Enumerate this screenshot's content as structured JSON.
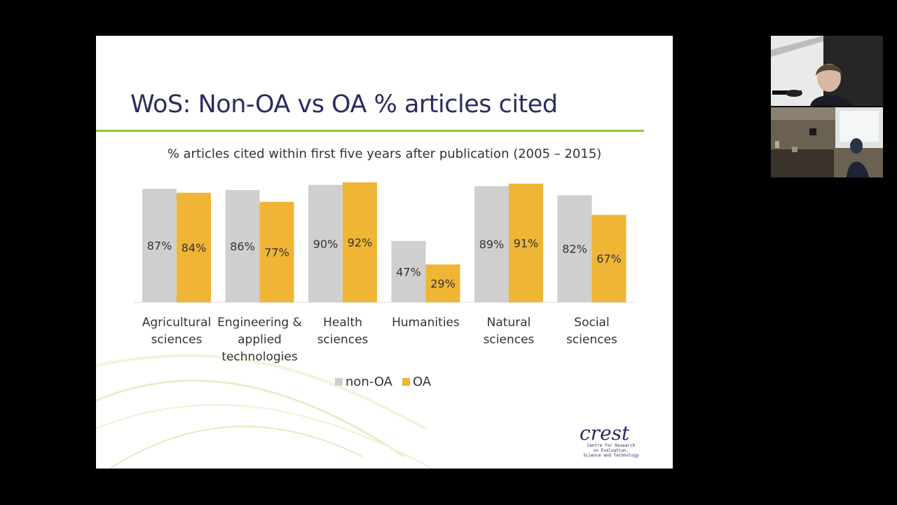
{
  "slide": {
    "title": "WoS: Non-OA vs OA % articles cited",
    "logo": {
      "word": "crest",
      "lines": [
        "Centre for Research",
        "on Evaluation,",
        "Science and Technology"
      ]
    }
  },
  "chart_data": {
    "type": "bar",
    "title": "% articles cited within first five years after publication (2005 – 2015)",
    "categories": [
      [
        "Agricultural",
        "sciences"
      ],
      [
        "Engineering &",
        "applied",
        "technologies"
      ],
      [
        "Health",
        "sciences"
      ],
      [
        "Humanities"
      ],
      [
        "Natural",
        "sciences"
      ],
      [
        "Social",
        "sciences"
      ]
    ],
    "series": [
      {
        "name": "non-OA",
        "color": "#d0cfcd",
        "values": [
          87,
          86,
          90,
          47,
          89,
          82
        ],
        "labels": [
          "87%",
          "86%",
          "90%",
          "47%",
          "89%",
          "82%"
        ]
      },
      {
        "name": "OA",
        "color": "#f0b535",
        "values": [
          84,
          77,
          92,
          29,
          91,
          67
        ],
        "labels": [
          "84%",
          "77%",
          "92%",
          "29%",
          "91%",
          "67%"
        ]
      }
    ],
    "ylim": [
      0,
      100
    ],
    "grid": false,
    "legend": "bottom"
  },
  "webcams": [
    {
      "name": "speaker-webcam",
      "description": "presenter"
    },
    {
      "name": "room-webcam",
      "description": "lecture room"
    }
  ]
}
